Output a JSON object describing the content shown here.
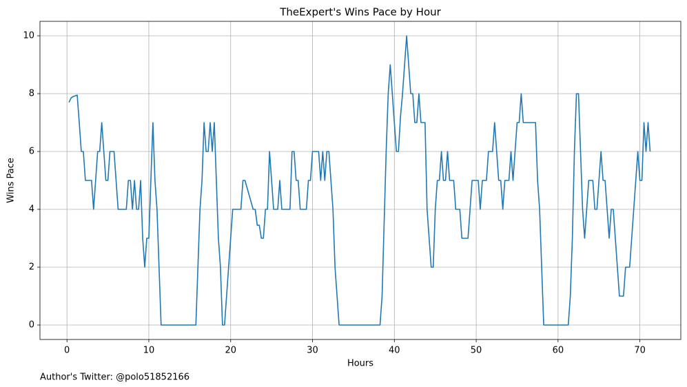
{
  "chart_data": {
    "type": "line",
    "title": "TheExpert's Wins Pace by Hour",
    "x_label": "Hours",
    "y_label": "Wins Pace",
    "footnote": "Author's Twitter: @polo51852166",
    "color": "#1f77b4",
    "grid": true,
    "xlim": [
      -3.3,
      75
    ],
    "ylim": [
      -0.5,
      10.5
    ],
    "xticks": [
      0,
      10,
      20,
      30,
      40,
      50,
      60,
      70
    ],
    "yticks": [
      0,
      2,
      4,
      6,
      8,
      10
    ],
    "x": [
      0.25,
      0.5,
      0.75,
      1.25,
      1.5,
      1.75,
      2.0,
      2.25,
      2.5,
      3.0,
      3.25,
      3.5,
      3.75,
      4.0,
      4.25,
      4.5,
      4.75,
      5.0,
      5.25,
      5.75,
      6.0,
      6.25,
      7.25,
      7.5,
      7.75,
      8.0,
      8.25,
      8.5,
      8.75,
      9.0,
      9.25,
      9.5,
      9.75,
      10.0,
      10.25,
      10.5,
      10.75,
      11.0,
      11.25,
      11.5,
      15.75,
      16.0,
      16.25,
      16.5,
      16.75,
      17.0,
      17.25,
      17.5,
      17.75,
      18.0,
      18.25,
      18.5,
      18.75,
      19.0,
      19.25,
      20.25,
      21.25,
      21.5,
      21.75,
      22.75,
      23.0,
      23.25,
      23.5,
      23.75,
      24.0,
      24.25,
      24.5,
      24.75,
      25.0,
      25.25,
      25.75,
      26.0,
      26.25,
      27.25,
      27.5,
      27.75,
      28.0,
      28.25,
      28.5,
      29.25,
      29.5,
      29.75,
      30.0,
      30.75,
      31.0,
      31.25,
      31.5,
      31.75,
      32.0,
      32.25,
      32.5,
      32.75,
      33.0,
      33.25,
      38.25,
      38.5,
      38.75,
      39.0,
      39.25,
      39.5,
      39.75,
      40.0,
      40.25,
      40.5,
      40.75,
      41.0,
      41.25,
      41.5,
      41.75,
      42.0,
      42.25,
      42.5,
      42.75,
      43.0,
      43.25,
      43.75,
      44.0,
      44.25,
      44.5,
      44.75,
      45.0,
      45.25,
      45.5,
      45.75,
      46.0,
      46.25,
      46.5,
      46.75,
      47.25,
      47.5,
      48.0,
      48.25,
      49.0,
      49.25,
      49.5,
      50.25,
      50.5,
      50.75,
      51.25,
      51.5,
      52.0,
      52.25,
      52.5,
      52.75,
      53.0,
      53.25,
      53.5,
      54.0,
      54.25,
      54.5,
      54.75,
      55.0,
      55.25,
      55.5,
      55.75,
      57.25,
      57.5,
      57.75,
      58.0,
      58.25,
      61.25,
      61.5,
      61.75,
      62.0,
      62.25,
      62.5,
      62.75,
      63.0,
      63.25,
      63.5,
      63.75,
      64.25,
      64.5,
      64.75,
      65.0,
      65.25,
      65.5,
      65.75,
      66.0,
      66.25,
      66.5,
      66.75,
      67.0,
      67.25,
      67.5,
      68.0,
      68.25,
      68.75,
      69.0,
      69.25,
      69.5,
      69.75,
      70.0,
      70.25,
      70.5,
      70.75,
      71.0,
      71.25
    ],
    "values": [
      7.7,
      7.85,
      7.9,
      7.95,
      7,
      6,
      6,
      5,
      5,
      5,
      4,
      5,
      6,
      6,
      7,
      6,
      5,
      5,
      6,
      6,
      5,
      4,
      4,
      5,
      5,
      4,
      5,
      4,
      4,
      5,
      3,
      2,
      3,
      3,
      5,
      7,
      5,
      4,
      2,
      0,
      0,
      2,
      4,
      5,
      7,
      6,
      6,
      7,
      6,
      7,
      5,
      3,
      2,
      0,
      0,
      4,
      4,
      5,
      5,
      4,
      4,
      3.45,
      3.45,
      3,
      3,
      4,
      4,
      6,
      5,
      4,
      4,
      5,
      4,
      4,
      6,
      6,
      5,
      5,
      4,
      4,
      5,
      5,
      6,
      6,
      5,
      6,
      5,
      6,
      6,
      5,
      4,
      2,
      1,
      0,
      0,
      1,
      3.5,
      6,
      8,
      9,
      8,
      7,
      6,
      6,
      7.2,
      8,
      9,
      10,
      9,
      8,
      8,
      7,
      7,
      8,
      7,
      7,
      4,
      3,
      2,
      2,
      4,
      5,
      5,
      6,
      5,
      5,
      6,
      5,
      5,
      4,
      4,
      3,
      3,
      4,
      5,
      5,
      4,
      5,
      5,
      6,
      6,
      7,
      6,
      5,
      5,
      4,
      5,
      5,
      6,
      5,
      6,
      7,
      7,
      8,
      7,
      7,
      5,
      4,
      2,
      0,
      0,
      1,
      3,
      6,
      8,
      8,
      6,
      4,
      3,
      4,
      5,
      5,
      4,
      4,
      5,
      6,
      5,
      5,
      4,
      3,
      4,
      4,
      3,
      2,
      1,
      1,
      2,
      2,
      3,
      4,
      5,
      6,
      5,
      5,
      7,
      6,
      7,
      6
    ]
  }
}
